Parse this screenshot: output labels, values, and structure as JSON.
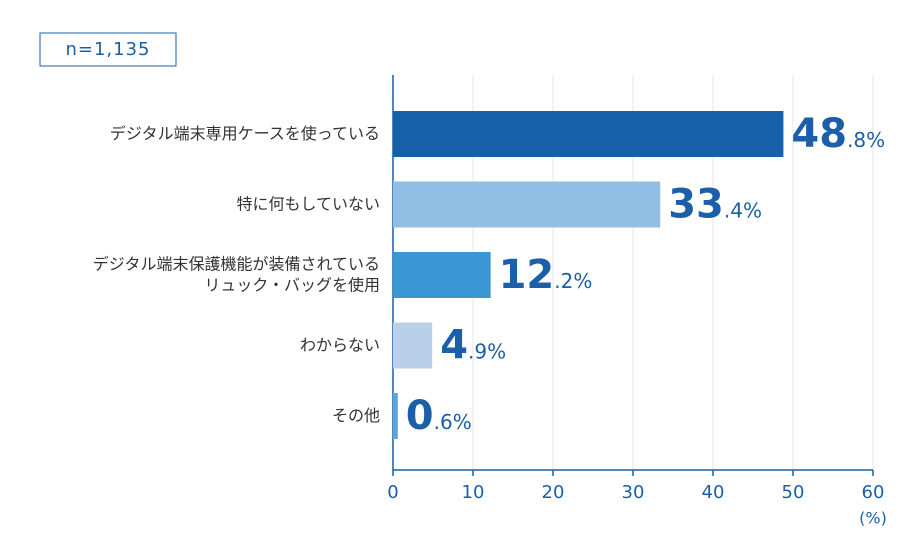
{
  "chart_data": {
    "type": "bar",
    "orientation": "horizontal",
    "annotation": "n=1,135",
    "x_label": "(%)",
    "categories": [
      "デジタル端末専用ケースを使っている",
      "特に何もしていない",
      "デジタル端末保護機能が装備されている\nリュック・バッグを使用",
      "わからない",
      "その他"
    ],
    "values": [
      48.8,
      33.4,
      12.2,
      4.9,
      0.6
    ],
    "value_labels": [
      "48.8%",
      "33.4%",
      "12.2%",
      "4.9%",
      "0.6%"
    ],
    "colors": [
      "#1560a8",
      "#8fbde3",
      "#3a97d3",
      "#b8d0ea",
      "#5aa6db"
    ],
    "xlim": [
      0,
      60
    ],
    "xticks": [
      0,
      10,
      20,
      30,
      40,
      50,
      60
    ],
    "grid": true
  }
}
